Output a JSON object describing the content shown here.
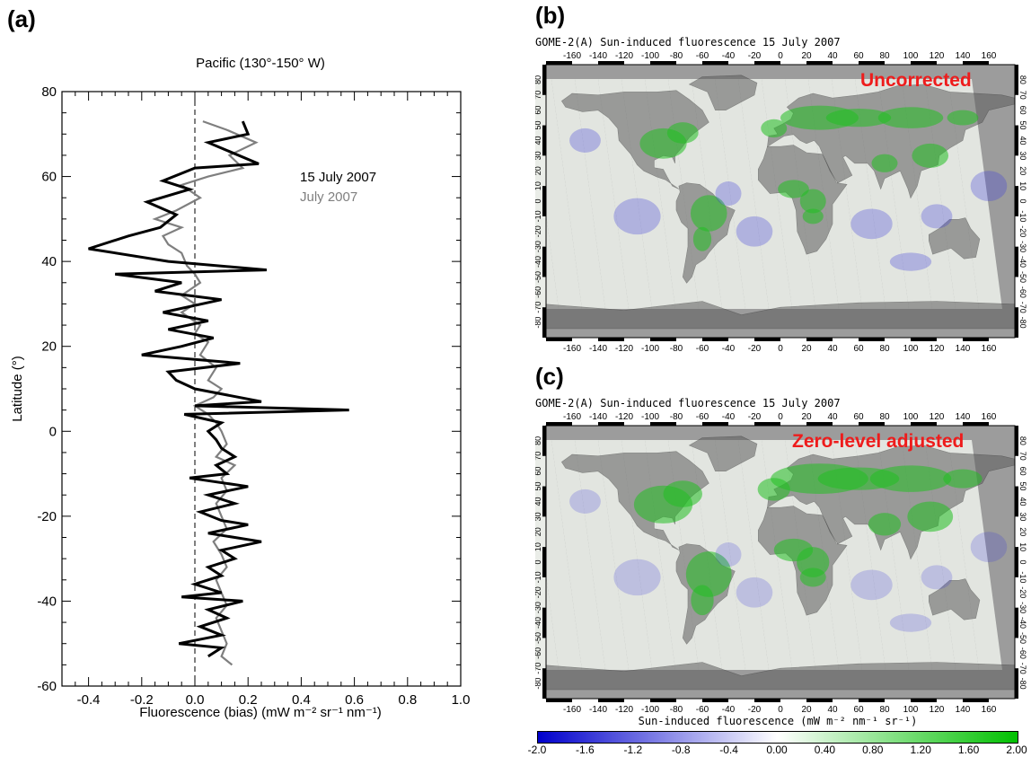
{
  "panels": {
    "a": {
      "letter": "(a)"
    },
    "b": {
      "letter": "(b)"
    },
    "c": {
      "letter": "(c)"
    }
  },
  "chart_data": [
    {
      "type": "line",
      "title": "Pacific (130°-150° W)",
      "xlabel": "Fluorescence (bias) (mW m⁻² sr⁻¹ nm⁻¹)",
      "ylabel": "Latitude (°)",
      "xlim": [
        -0.5,
        1.0
      ],
      "ylim": [
        -60,
        80
      ],
      "xticks": [
        "-0.4",
        "-0.2",
        "0.0",
        "0.2",
        "0.4",
        "0.6",
        "0.8",
        "1.0"
      ],
      "yticks": [
        "-60",
        "-40",
        "-20",
        "0",
        "20",
        "40",
        "60",
        "80"
      ],
      "legend": "top-right",
      "reference_line_x": 0.0,
      "series": [
        {
          "name": "15 July 2007",
          "color": "#000000",
          "points": [
            [
              0.18,
              73
            ],
            [
              0.2,
              70
            ],
            [
              0.05,
              68
            ],
            [
              0.24,
              63
            ],
            [
              0.0,
              62
            ],
            [
              -0.12,
              59
            ],
            [
              -0.02,
              57
            ],
            [
              -0.18,
              54
            ],
            [
              -0.07,
              51
            ],
            [
              -0.13,
              48
            ],
            [
              -0.25,
              46
            ],
            [
              -0.4,
              43
            ],
            [
              -0.1,
              40
            ],
            [
              0.27,
              38
            ],
            [
              -0.3,
              37
            ],
            [
              -0.05,
              35
            ],
            [
              -0.15,
              33
            ],
            [
              0.1,
              31
            ],
            [
              -0.12,
              28
            ],
            [
              0.05,
              26
            ],
            [
              -0.1,
              24
            ],
            [
              0.07,
              22
            ],
            [
              -0.05,
              20
            ],
            [
              -0.2,
              18
            ],
            [
              0.17,
              16
            ],
            [
              -0.1,
              14
            ],
            [
              -0.07,
              12
            ],
            [
              0.0,
              10
            ],
            [
              0.25,
              7
            ],
            [
              0.0,
              6
            ],
            [
              0.58,
              5
            ],
            [
              -0.04,
              4
            ],
            [
              0.1,
              2
            ],
            [
              0.05,
              0
            ],
            [
              0.08,
              -2
            ],
            [
              0.1,
              -4
            ],
            [
              0.15,
              -6
            ],
            [
              0.08,
              -8
            ],
            [
              0.12,
              -10
            ],
            [
              -0.02,
              -11
            ],
            [
              0.2,
              -13
            ],
            [
              0.05,
              -15
            ],
            [
              0.15,
              -17
            ],
            [
              0.02,
              -19
            ],
            [
              0.1,
              -21
            ],
            [
              0.2,
              -22
            ],
            [
              0.05,
              -24
            ],
            [
              0.25,
              -26
            ],
            [
              0.1,
              -28
            ],
            [
              0.15,
              -30
            ],
            [
              0.05,
              -32
            ],
            [
              0.1,
              -34
            ],
            [
              0.0,
              -36
            ],
            [
              0.1,
              -38
            ],
            [
              -0.05,
              -39
            ],
            [
              0.18,
              -40
            ],
            [
              0.05,
              -42
            ],
            [
              0.12,
              -44
            ],
            [
              0.02,
              -46
            ],
            [
              0.1,
              -48
            ],
            [
              -0.06,
              -50
            ],
            [
              0.1,
              -51
            ],
            [
              0.05,
              -53
            ]
          ]
        },
        {
          "name": "July 2007",
          "color": "#7f7f7f",
          "points": [
            [
              0.03,
              73
            ],
            [
              0.12,
              71
            ],
            [
              0.23,
              68
            ],
            [
              0.13,
              65
            ],
            [
              0.18,
              62
            ],
            [
              0.05,
              60
            ],
            [
              -0.05,
              58
            ],
            [
              0.02,
              55
            ],
            [
              -0.07,
              52
            ],
            [
              -0.15,
              50
            ],
            [
              -0.05,
              48
            ],
            [
              -0.12,
              46
            ],
            [
              -0.1,
              44
            ],
            [
              -0.05,
              42
            ],
            [
              -0.03,
              39
            ],
            [
              0.0,
              37
            ],
            [
              0.02,
              35
            ],
            [
              -0.05,
              32
            ],
            [
              0.0,
              30
            ],
            [
              -0.05,
              28
            ],
            [
              0.02,
              25
            ],
            [
              0.0,
              23
            ],
            [
              0.05,
              21
            ],
            [
              0.02,
              18
            ],
            [
              0.08,
              15
            ],
            [
              0.05,
              12
            ],
            [
              0.1,
              10
            ],
            [
              0.07,
              8
            ],
            [
              0.0,
              6
            ],
            [
              0.05,
              4
            ],
            [
              0.08,
              2
            ],
            [
              0.1,
              0
            ],
            [
              0.12,
              -3
            ],
            [
              0.08,
              -6
            ],
            [
              0.15,
              -8
            ],
            [
              0.1,
              -11
            ],
            [
              0.12,
              -14
            ],
            [
              0.08,
              -17
            ],
            [
              0.1,
              -20
            ],
            [
              0.12,
              -23
            ],
            [
              0.07,
              -26
            ],
            [
              0.1,
              -29
            ],
            [
              0.12,
              -32
            ],
            [
              0.08,
              -35
            ],
            [
              0.1,
              -38
            ],
            [
              0.12,
              -41
            ],
            [
              0.08,
              -44
            ],
            [
              0.1,
              -47
            ],
            [
              0.12,
              -50
            ],
            [
              0.1,
              -53
            ],
            [
              0.14,
              -55
            ]
          ]
        }
      ]
    },
    {
      "type": "heatmap",
      "title": "GOME-2(A) Sun-induced fluorescence    15 July 2007",
      "annotation": "Uncorrected",
      "lon_ticks": [
        "-160",
        "-140",
        "-120",
        "-100",
        "-80",
        "-60",
        "-40",
        "-20",
        "0",
        "20",
        "40",
        "60",
        "80",
        "100",
        "120",
        "140",
        "160"
      ],
      "lat_ticks": [
        "80",
        "70",
        "60",
        "50",
        "40",
        "30",
        "20",
        "10",
        "0",
        "-10",
        "-20",
        "-30",
        "-40",
        "-50",
        "-60",
        "-70",
        "-80"
      ]
    },
    {
      "type": "heatmap",
      "title": "GOME-2(A) Sun-induced fluorescence    15 July 2007",
      "annotation": "Zero-level adjusted",
      "lon_ticks": [
        "-160",
        "-140",
        "-120",
        "-100",
        "-80",
        "-60",
        "-40",
        "-20",
        "0",
        "20",
        "40",
        "60",
        "80",
        "100",
        "120",
        "140",
        "160"
      ],
      "lat_ticks": [
        "80",
        "70",
        "60",
        "50",
        "40",
        "30",
        "20",
        "10",
        "0",
        "-10",
        "-20",
        "-30",
        "-40",
        "-50",
        "-60",
        "-70",
        "-80"
      ],
      "colorbar": {
        "label": "Sun-induced fluorescence (mW m⁻² nm⁻¹ sr⁻¹)",
        "ticks": [
          "-2.0",
          "-1.6",
          "-1.2",
          "-0.8",
          "-0.4",
          "0.00",
          "0.40",
          "0.80",
          "1.20",
          "1.60",
          "2.00"
        ],
        "colors": [
          "#0000cc",
          "#ffffff",
          "#00c000"
        ]
      }
    }
  ]
}
